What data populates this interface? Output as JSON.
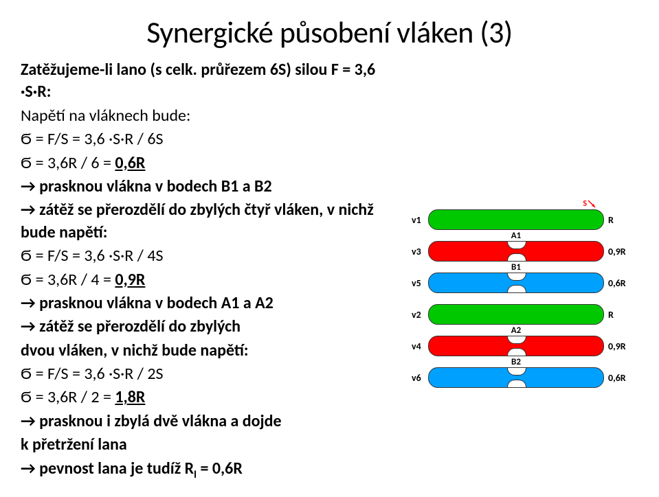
{
  "title": "Synergické působení vláken (3)",
  "intro1": "Zatěžujeme-li lano (s celk. průřezem 6S) silou F = 3,6 ·S·R:",
  "intro2": "Napětí na vláknech bude:",
  "line1": "Ϭ = F/S = 3,6 ·S·R / 6S",
  "line2a": "Ϭ = 3,6R / 6 = ",
  "line2b": "0,6R",
  "line3": "→ prasknou vlákna v bodech B1 a B2",
  "line4": "→ zátěž se přerozdělí do zbylých čtyř vláken, v nichž bude napětí:",
  "line5": "Ϭ = F/S = 3,6 ·S·R / 4S",
  "line6a": "Ϭ = 3,6R / 4 = ",
  "line6b": "0,9R",
  "line7": "→ prasknou vlákna v bodech A1 a A2",
  "line8a": "→ zátěž se přerozdělí do zbylých",
  "line8b": "dvou vláken, v nichž bude napětí:",
  "line9": "Ϭ = F/S = 3,6 ·S·R / 2S",
  "line10a": "Ϭ = 3,6R / 2 = ",
  "line10b": "1,8R",
  "line11a": "→ prasknou i zbylá dvě vlákna a dojde",
  "line11b": "k přetržení lana",
  "line12a": "→ pevnost lana je tudíž R",
  "line12sub": "l",
  "line12b": " = 0,6R",
  "diagram": {
    "rows": [
      {
        "left": "v1",
        "color": "green",
        "neck": null,
        "right": "R",
        "sArrow": true
      },
      {
        "left": "v3",
        "color": "red",
        "neck": "A1",
        "right": "0,9R",
        "sArrow": false
      },
      {
        "left": "v5",
        "color": "blue",
        "neck": "B1",
        "right": "0,6R",
        "sArrow": false
      },
      {
        "left": "v2",
        "color": "green",
        "neck": null,
        "right": "R",
        "sArrow": false
      },
      {
        "left": "v4",
        "color": "red",
        "neck": "A2",
        "right": "0,9R",
        "sArrow": false
      },
      {
        "left": "v6",
        "color": "blue",
        "neck": "B2",
        "right": "0,6R",
        "sArrow": false
      }
    ],
    "sLabel": "S"
  }
}
